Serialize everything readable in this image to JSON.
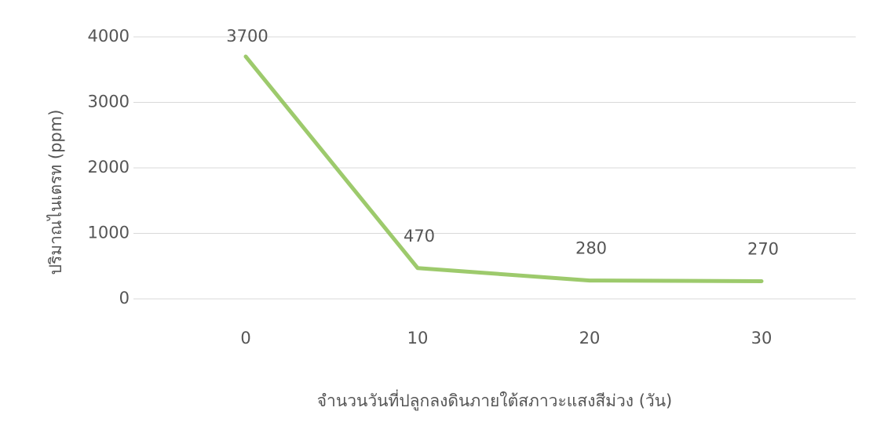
{
  "chart_data": {
    "type": "line",
    "categories": [
      "0",
      "10",
      "20",
      "30"
    ],
    "series": [
      {
        "color": "#8cc152",
        "values": [
          3700,
          470,
          280,
          270
        ]
      }
    ],
    "ylim": [
      0,
      4000
    ],
    "yticks": [
      0,
      1000,
      2000,
      3000,
      4000
    ],
    "grid": true,
    "y_label": "ปริมาณไนเตรท  (ppm)",
    "x_label": "จำนวนวันที่ปลูกลงดินภายใต้สภาวะแสงสีม่วง (วัน)",
    "data_labels": true
  }
}
